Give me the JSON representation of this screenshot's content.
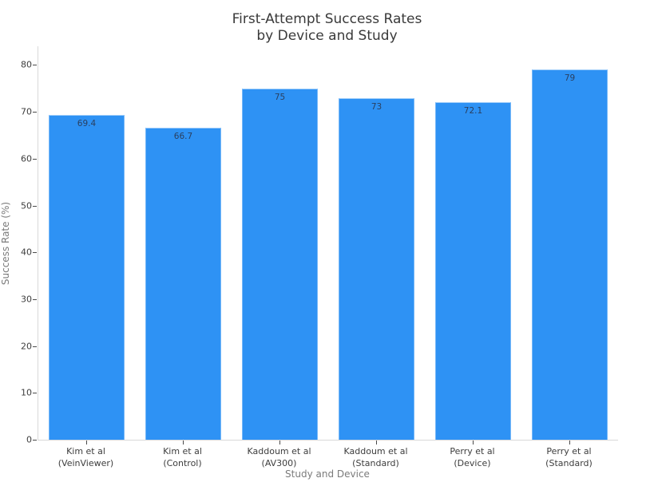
{
  "title": {
    "lines": [
      "First-Attempt Success Rates",
      "by Device and Study"
    ]
  },
  "chart_data": {
    "type": "bar",
    "title": "First-Attempt Success Rates by Device and Study",
    "categories": [
      "Kim et al\n(VeinViewer)",
      "Kim et al\n(Control)",
      "Kaddoum et al\n(AV300)",
      "Kaddoum et al\n(Standard)",
      "Perry et al\n(Device)",
      "Perry et al\n(Standard)"
    ],
    "values": [
      69.4,
      66.7,
      75,
      73,
      72.1,
      79
    ],
    "value_labels": [
      "69.4",
      "66.7",
      "75",
      "73",
      "72.1",
      "79"
    ],
    "xlabel": "Study and Device",
    "ylabel": "Success Rate (%)",
    "ylim": [
      0,
      84
    ],
    "yticks": [
      0,
      10,
      20,
      30,
      40,
      50,
      60,
      70,
      80
    ],
    "grid": false,
    "legend": "none",
    "colors": {
      "bar": "#2e92f4",
      "bar_value_label": "#2a3f5f",
      "axis_line": "#d9d9d9",
      "tick_label": "#3d3d3d",
      "axis_title": "#7b7b7b",
      "chart_title": "#3a3a3a",
      "background": "#ffffff"
    }
  }
}
